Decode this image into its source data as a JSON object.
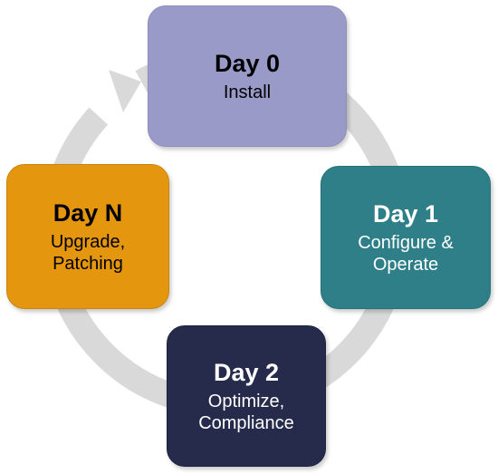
{
  "diagram": {
    "ring_color": "#d9d9d9",
    "stages": [
      {
        "id": "day0",
        "title": "Day 0",
        "lines": [
          "Install"
        ],
        "fill": "#9a9ac9",
        "text_color": "#000000"
      },
      {
        "id": "day1",
        "title": "Day 1",
        "lines": [
          "Configure &",
          "Operate"
        ],
        "fill": "#2e7f88",
        "text_color": "#ffffff"
      },
      {
        "id": "day2",
        "title": "Day 2",
        "lines": [
          "Optimize,",
          "Compliance"
        ],
        "fill": "#262b4b",
        "text_color": "#ffffff"
      },
      {
        "id": "dayn",
        "title": "Day N",
        "lines": [
          "Upgrade,",
          "Patching"
        ],
        "fill": "#e5960f",
        "text_color": "#000000"
      }
    ]
  }
}
